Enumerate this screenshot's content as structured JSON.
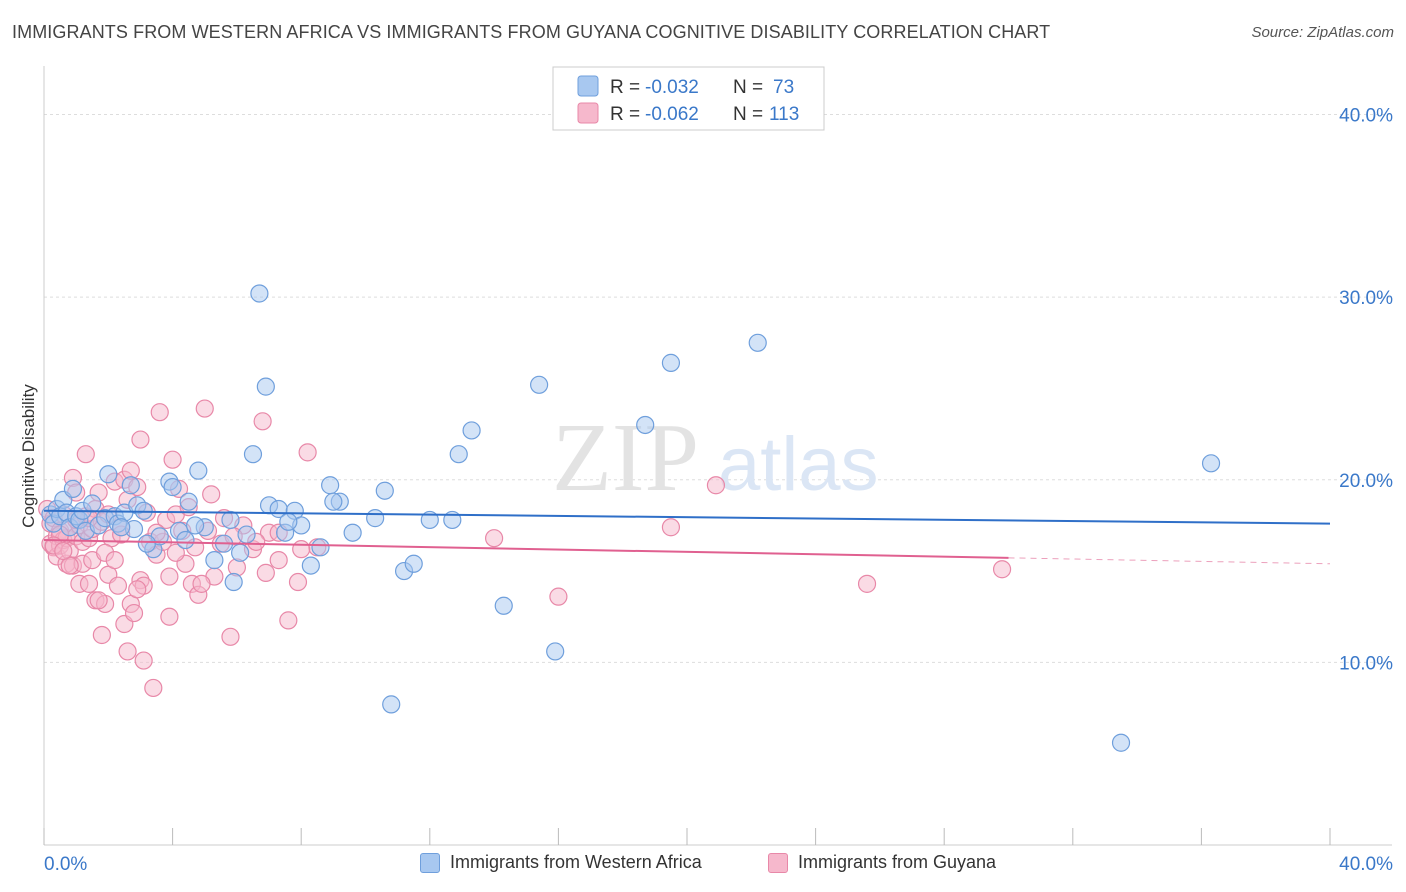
{
  "title": "IMMIGRANTS FROM WESTERN AFRICA VS IMMIGRANTS FROM GUYANA COGNITIVE DISABILITY CORRELATION CHART",
  "source": "Source: ZipAtlas.com",
  "watermark": {
    "zip": "ZIP",
    "atlas": "atlas"
  },
  "colors": {
    "blue_fill": "#a8c8f0",
    "blue_stroke": "#6f9fdc",
    "blue_line": "#2f6fc8",
    "pink_fill": "#f6b8cc",
    "pink_stroke": "#e888a8",
    "pink_line": "#e06090",
    "axis_label": "#3a78c9",
    "grid": "#dddddd"
  },
  "stats": {
    "blue": {
      "r_label": "R =",
      "r_value": "-0.032",
      "n_label": "N =",
      "n_value": "73"
    },
    "pink": {
      "r_label": "R =",
      "r_value": "-0.062",
      "n_label": "N =",
      "n_value": "113"
    }
  },
  "chart_data": {
    "type": "scatter",
    "title": "IMMIGRANTS FROM WESTERN AFRICA VS IMMIGRANTS FROM GUYANA COGNITIVE DISABILITY CORRELATION CHART",
    "ylabel": "Cognitive Disability",
    "xlim": [
      0,
      40
    ],
    "ylim": [
      0,
      42
    ],
    "x_tick_labels": [
      "0.0%",
      "40.0%"
    ],
    "y_ticks": [
      10,
      20,
      30,
      40
    ],
    "y_tick_labels": [
      "10.0%",
      "20.0%",
      "30.0%",
      "40.0%"
    ],
    "grid": true,
    "legend_position": "bottom",
    "series": [
      {
        "name": "Immigrants from Western Africa",
        "trend": {
          "x": [
            0,
            40
          ],
          "y": [
            18.3,
            17.6
          ],
          "dashed_from": null
        },
        "points": [
          [
            0.2,
            18.1
          ],
          [
            0.3,
            17.6
          ],
          [
            0.4,
            18.4
          ],
          [
            0.5,
            18.0
          ],
          [
            0.6,
            18.9
          ],
          [
            0.7,
            18.2
          ],
          [
            0.8,
            17.4
          ],
          [
            0.9,
            19.5
          ],
          [
            1.0,
            18.0
          ],
          [
            1.1,
            17.8
          ],
          [
            1.2,
            18.3
          ],
          [
            1.3,
            17.2
          ],
          [
            1.5,
            18.7
          ],
          [
            1.7,
            17.5
          ],
          [
            1.9,
            17.9
          ],
          [
            2.0,
            20.3
          ],
          [
            2.2,
            18.0
          ],
          [
            2.3,
            17.6
          ],
          [
            2.5,
            18.2
          ],
          [
            2.7,
            19.7
          ],
          [
            2.8,
            17.3
          ],
          [
            2.9,
            18.6
          ],
          [
            3.1,
            18.3
          ],
          [
            3.4,
            16.2
          ],
          [
            3.6,
            16.9
          ],
          [
            3.9,
            19.9
          ],
          [
            4.0,
            19.6
          ],
          [
            4.2,
            17.2
          ],
          [
            4.4,
            16.7
          ],
          [
            4.5,
            18.8
          ],
          [
            4.8,
            20.5
          ],
          [
            5.0,
            17.4
          ],
          [
            5.3,
            15.6
          ],
          [
            5.6,
            16.5
          ],
          [
            5.9,
            14.4
          ],
          [
            6.1,
            16.0
          ],
          [
            6.3,
            17.0
          ],
          [
            6.5,
            21.4
          ],
          [
            6.7,
            30.2
          ],
          [
            6.9,
            25.1
          ],
          [
            7.0,
            18.6
          ],
          [
            7.3,
            18.4
          ],
          [
            7.5,
            17.1
          ],
          [
            7.8,
            18.3
          ],
          [
            8.0,
            17.5
          ],
          [
            8.3,
            15.3
          ],
          [
            8.6,
            16.3
          ],
          [
            8.9,
            19.7
          ],
          [
            9.2,
            18.8
          ],
          [
            9.6,
            17.1
          ],
          [
            10.3,
            17.9
          ],
          [
            10.6,
            19.4
          ],
          [
            10.8,
            7.7
          ],
          [
            11.2,
            15.0
          ],
          [
            11.5,
            15.4
          ],
          [
            12.0,
            17.8
          ],
          [
            12.7,
            17.8
          ],
          [
            12.9,
            21.4
          ],
          [
            13.3,
            22.7
          ],
          [
            14.3,
            13.1
          ],
          [
            15.4,
            25.2
          ],
          [
            15.9,
            10.6
          ],
          [
            18.7,
            23.0
          ],
          [
            19.5,
            26.4
          ],
          [
            22.2,
            27.5
          ],
          [
            33.5,
            5.6
          ],
          [
            36.3,
            20.9
          ],
          [
            4.7,
            17.5
          ],
          [
            5.8,
            17.8
          ],
          [
            7.6,
            17.7
          ],
          [
            9.0,
            18.8
          ],
          [
            3.2,
            16.5
          ],
          [
            2.4,
            17.4
          ]
        ]
      },
      {
        "name": "Immigrants from Guyana",
        "trend": {
          "x": [
            0,
            40
          ],
          "y": [
            16.7,
            15.4
          ],
          "dashed_from": 30.0
        },
        "points": [
          [
            0.1,
            18.4
          ],
          [
            0.2,
            17.6
          ],
          [
            0.2,
            16.5
          ],
          [
            0.3,
            16.3
          ],
          [
            0.3,
            17.9
          ],
          [
            0.4,
            15.8
          ],
          [
            0.4,
            16.9
          ],
          [
            0.5,
            16.4
          ],
          [
            0.5,
            17.2
          ],
          [
            0.6,
            16.7
          ],
          [
            0.6,
            18.1
          ],
          [
            0.7,
            15.4
          ],
          [
            0.7,
            16.8
          ],
          [
            0.8,
            17.4
          ],
          [
            0.8,
            16.1
          ],
          [
            0.9,
            20.1
          ],
          [
            0.9,
            15.3
          ],
          [
            1.0,
            16.9
          ],
          [
            1.0,
            19.3
          ],
          [
            1.1,
            17.5
          ],
          [
            1.1,
            14.3
          ],
          [
            1.2,
            15.4
          ],
          [
            1.2,
            16.6
          ],
          [
            1.3,
            21.4
          ],
          [
            1.3,
            18.0
          ],
          [
            1.4,
            14.3
          ],
          [
            1.4,
            16.8
          ],
          [
            1.5,
            17.3
          ],
          [
            1.5,
            15.6
          ],
          [
            1.6,
            13.4
          ],
          [
            1.6,
            18.4
          ],
          [
            1.7,
            19.3
          ],
          [
            1.8,
            11.5
          ],
          [
            1.8,
            17.7
          ],
          [
            1.9,
            13.2
          ],
          [
            2.0,
            14.8
          ],
          [
            2.0,
            18.1
          ],
          [
            2.1,
            16.8
          ],
          [
            2.2,
            19.9
          ],
          [
            2.3,
            14.2
          ],
          [
            2.4,
            17.4
          ],
          [
            2.5,
            12.1
          ],
          [
            2.5,
            20.0
          ],
          [
            2.6,
            10.6
          ],
          [
            2.7,
            13.2
          ],
          [
            2.7,
            20.5
          ],
          [
            2.8,
            12.7
          ],
          [
            2.9,
            19.6
          ],
          [
            3.0,
            22.2
          ],
          [
            3.0,
            14.5
          ],
          [
            3.1,
            14.2
          ],
          [
            3.2,
            18.2
          ],
          [
            3.3,
            16.6
          ],
          [
            3.4,
            8.6
          ],
          [
            3.5,
            15.9
          ],
          [
            3.6,
            23.7
          ],
          [
            3.7,
            16.6
          ],
          [
            3.8,
            17.8
          ],
          [
            3.9,
            14.7
          ],
          [
            4.0,
            21.1
          ],
          [
            4.1,
            18.1
          ],
          [
            4.2,
            19.5
          ],
          [
            4.3,
            17.2
          ],
          [
            4.5,
            18.5
          ],
          [
            4.6,
            14.3
          ],
          [
            4.7,
            16.3
          ],
          [
            4.8,
            13.7
          ],
          [
            5.0,
            23.9
          ],
          [
            5.1,
            17.2
          ],
          [
            5.2,
            19.2
          ],
          [
            5.3,
            14.7
          ],
          [
            5.5,
            16.5
          ],
          [
            5.8,
            11.4
          ],
          [
            6.0,
            15.2
          ],
          [
            6.2,
            17.5
          ],
          [
            6.5,
            16.2
          ],
          [
            6.8,
            23.2
          ],
          [
            7.0,
            17.1
          ],
          [
            7.3,
            15.6
          ],
          [
            7.6,
            12.3
          ],
          [
            7.9,
            14.4
          ],
          [
            8.2,
            21.5
          ],
          [
            8.5,
            16.3
          ],
          [
            16.0,
            13.6
          ],
          [
            19.5,
            17.4
          ],
          [
            20.9,
            19.7
          ],
          [
            25.6,
            14.3
          ],
          [
            29.8,
            15.1
          ],
          [
            14.0,
            16.8
          ],
          [
            3.9,
            12.5
          ],
          [
            2.9,
            14.0
          ],
          [
            6.6,
            16.6
          ],
          [
            5.6,
            17.9
          ],
          [
            4.9,
            14.3
          ],
          [
            1.4,
            17.9
          ],
          [
            1.9,
            16.0
          ],
          [
            0.8,
            15.3
          ],
          [
            2.6,
            18.9
          ],
          [
            3.5,
            17.1
          ],
          [
            7.3,
            17.1
          ],
          [
            8.0,
            16.2
          ],
          [
            1.0,
            17.8
          ],
          [
            0.5,
            17.0
          ],
          [
            0.3,
            16.4
          ],
          [
            2.2,
            15.6
          ],
          [
            4.4,
            15.4
          ],
          [
            5.9,
            16.9
          ],
          [
            6.9,
            14.9
          ],
          [
            3.1,
            10.1
          ],
          [
            1.7,
            13.4
          ],
          [
            0.6,
            16.1
          ],
          [
            2.4,
            17.0
          ],
          [
            4.1,
            16.0
          ]
        ]
      }
    ]
  }
}
